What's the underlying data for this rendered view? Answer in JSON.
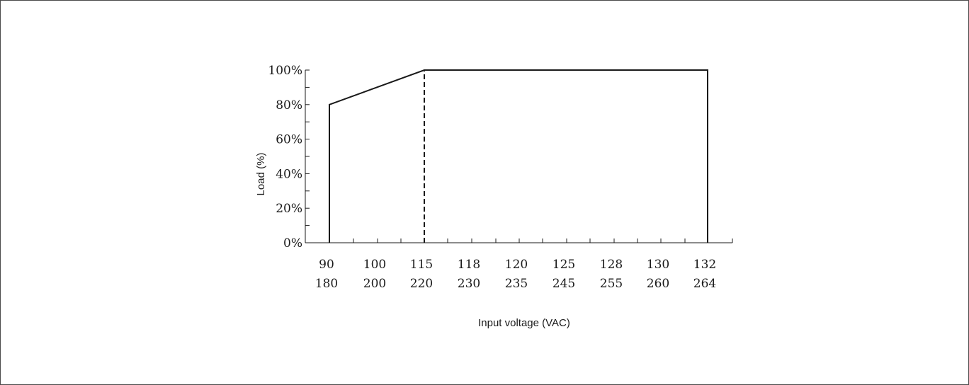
{
  "chart_data": {
    "type": "line",
    "xlabel": "Input voltage (VAC)",
    "ylabel": "Load (%)",
    "ylim": [
      0,
      100
    ],
    "y_ticks": [
      "0%",
      "20%",
      "40%",
      "60%",
      "80%",
      "100%"
    ],
    "x_ticks": [
      {
        "top": "90",
        "bottom": "180"
      },
      {
        "top": "100",
        "bottom": "200"
      },
      {
        "top": "115",
        "bottom": "220"
      },
      {
        "top": "118",
        "bottom": "230"
      },
      {
        "top": "120",
        "bottom": "235"
      },
      {
        "top": "125",
        "bottom": "245"
      },
      {
        "top": "128",
        "bottom": "255"
      },
      {
        "top": "130",
        "bottom": "260"
      },
      {
        "top": "132",
        "bottom": "264"
      }
    ],
    "series": [
      {
        "points": [
          {
            "x": "90",
            "y": 0
          },
          {
            "x": "90",
            "y": 80
          },
          {
            "x": "115",
            "y": 100
          },
          {
            "x": "132",
            "y": 100
          },
          {
            "x": "132",
            "y": 0
          }
        ]
      }
    ],
    "reference_lines": [
      {
        "x": "115",
        "style": "dashed",
        "from": 0,
        "to": 100
      }
    ],
    "grid": false,
    "legend": "none"
  }
}
